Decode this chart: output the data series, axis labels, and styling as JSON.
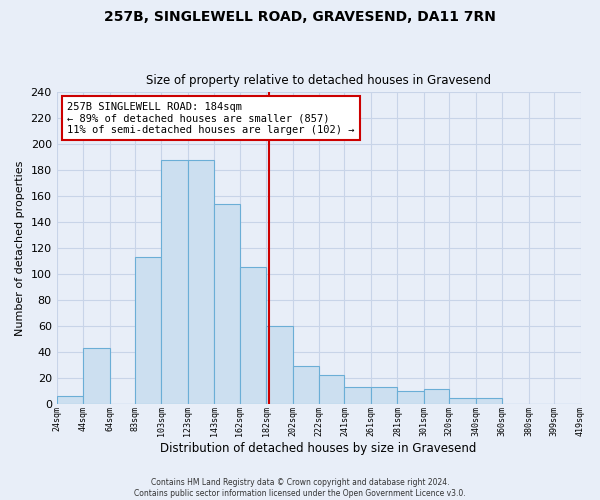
{
  "title": "257B, SINGLEWELL ROAD, GRAVESEND, DA11 7RN",
  "subtitle": "Size of property relative to detached houses in Gravesend",
  "xlabel": "Distribution of detached houses by size in Gravesend",
  "ylabel": "Number of detached properties",
  "bar_color": "#ccdff0",
  "bar_edge_color": "#6baed6",
  "bins": [
    24,
    44,
    64,
    83,
    103,
    123,
    143,
    162,
    182,
    202,
    222,
    241,
    261,
    281,
    301,
    320,
    340,
    360,
    380,
    399,
    419
  ],
  "counts": [
    6,
    43,
    0,
    113,
    188,
    188,
    154,
    105,
    60,
    29,
    22,
    13,
    13,
    10,
    11,
    4,
    4,
    0,
    0,
    0,
    0
  ],
  "tick_labels": [
    "24sqm",
    "44sqm",
    "64sqm",
    "83sqm",
    "103sqm",
    "123sqm",
    "143sqm",
    "162sqm",
    "182sqm",
    "202sqm",
    "222sqm",
    "241sqm",
    "261sqm",
    "281sqm",
    "301sqm",
    "320sqm",
    "340sqm",
    "360sqm",
    "380sqm",
    "399sqm",
    "419sqm"
  ],
  "vline_x": 184,
  "vline_color": "#cc0000",
  "annotation_title": "257B SINGLEWELL ROAD: 184sqm",
  "annotation_line1": "← 89% of detached houses are smaller (857)",
  "annotation_line2": "11% of semi-detached houses are larger (102) →",
  "annotation_box_color": "#ffffff",
  "annotation_box_edge": "#cc0000",
  "ylim": [
    0,
    240
  ],
  "yticks": [
    0,
    20,
    40,
    60,
    80,
    100,
    120,
    140,
    160,
    180,
    200,
    220,
    240
  ],
  "footer1": "Contains HM Land Registry data © Crown copyright and database right 2024.",
  "footer2": "Contains public sector information licensed under the Open Government Licence v3.0.",
  "bg_color": "#e8eef8",
  "grid_color": "#c8d4e8",
  "title_fontsize": 10,
  "subtitle_fontsize": 8.5,
  "annotation_fontsize": 7.5
}
